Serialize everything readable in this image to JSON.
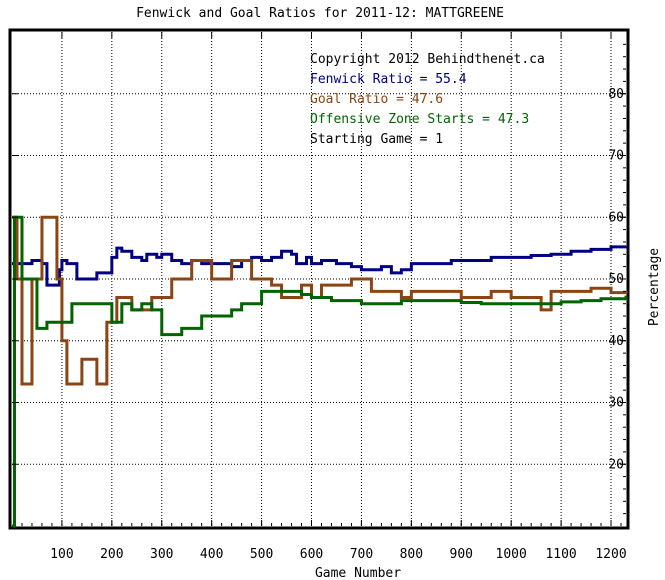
{
  "chart_data": {
    "type": "line",
    "title": "Fenwick and Goal Ratios for 2011-12: MATTGREENE",
    "xlabel": "Game Number",
    "ylabel": "Percentage",
    "xlim": [
      0,
      1230
    ],
    "ylim": [
      10,
      90
    ],
    "x_ticks": [
      100,
      200,
      300,
      400,
      500,
      600,
      700,
      800,
      900,
      1000,
      1100,
      1200
    ],
    "y_ticks": [
      20,
      30,
      40,
      50,
      60,
      70,
      80
    ],
    "grid": true,
    "legend": {
      "position": "top-right",
      "lines": [
        {
          "text": "Copyright 2012 Behindthenet.ca",
          "color": "#000000"
        },
        {
          "text": "Fenwick Ratio = 55.4",
          "color": "#000080"
        },
        {
          "text": "Goal Ratio = 47.6",
          "color": "#8B4513"
        },
        {
          "text": "Offensive Zone Starts = 47.3",
          "color": "#006400"
        },
        {
          "text": "Starting Game = 1",
          "color": "#000000"
        }
      ]
    },
    "series": [
      {
        "color": "#000080",
        "x": [
          0,
          10,
          40,
          60,
          70,
          80,
          95,
          100,
          110,
          130,
          150,
          170,
          200,
          210,
          220,
          240,
          260,
          270,
          290,
          300,
          320,
          340,
          360,
          380,
          400,
          420,
          440,
          460,
          480,
          500,
          520,
          540,
          560,
          570,
          590,
          600,
          620,
          650,
          680,
          700,
          720,
          740,
          760,
          780,
          800,
          840,
          880,
          920,
          960,
          1000,
          1040,
          1080,
          1120,
          1160,
          1200,
          1230
        ],
        "y": [
          52.5,
          52.5,
          53,
          52.5,
          49,
          49,
          51.5,
          53,
          52.5,
          50,
          50,
          51,
          53.5,
          55,
          54.5,
          53.5,
          53,
          54,
          53.5,
          54,
          53,
          52.5,
          53,
          52.5,
          52.5,
          52.5,
          52,
          53,
          53.5,
          53,
          53.5,
          54.5,
          54,
          52.5,
          53.5,
          52.5,
          53,
          52.5,
          52,
          51.5,
          51.5,
          52,
          51,
          51.5,
          52.5,
          52.5,
          53,
          53,
          53.5,
          53.5,
          53.8,
          54,
          54.5,
          54.8,
          55.2,
          55.4
        ]
      },
      {
        "color": "#8B4513",
        "x": [
          0,
          5,
          10,
          20,
          40,
          50,
          60,
          70,
          90,
          100,
          110,
          130,
          140,
          150,
          170,
          180,
          190,
          200,
          210,
          220,
          240,
          260,
          280,
          300,
          320,
          340,
          360,
          380,
          400,
          420,
          440,
          460,
          480,
          500,
          520,
          540,
          560,
          580,
          600,
          620,
          650,
          680,
          700,
          720,
          740,
          760,
          780,
          800,
          840,
          880,
          900,
          920,
          940,
          960,
          1000,
          1040,
          1060,
          1080,
          1100,
          1140,
          1160,
          1200,
          1230
        ],
        "y": [
          60,
          60,
          50,
          33,
          50,
          50,
          60,
          60,
          50,
          40,
          33,
          33,
          37,
          37,
          33,
          33,
          43,
          43,
          47,
          47,
          45,
          45,
          47,
          47,
          50,
          50,
          53,
          53,
          50,
          50,
          53,
          53,
          50,
          50,
          49,
          47,
          47,
          49,
          47,
          49,
          49,
          50,
          50,
          48,
          48,
          48,
          47,
          48,
          48,
          48,
          47,
          47,
          47,
          48,
          47,
          47,
          45,
          48,
          48,
          48,
          48.5,
          47.8,
          47.6
        ]
      },
      {
        "color": "#006400",
        "x": [
          0,
          5,
          10,
          20,
          40,
          50,
          60,
          70,
          80,
          100,
          120,
          130,
          140,
          150,
          160,
          180,
          200,
          220,
          240,
          260,
          280,
          300,
          320,
          340,
          360,
          380,
          400,
          420,
          440,
          460,
          480,
          500,
          520,
          540,
          560,
          580,
          600,
          640,
          680,
          700,
          740,
          780,
          820,
          860,
          900,
          940,
          980,
          1020,
          1060,
          1100,
          1140,
          1180,
          1230
        ],
        "y": [
          10,
          60,
          60,
          50,
          50,
          42,
          42,
          43,
          43,
          43,
          46,
          46,
          46,
          46,
          46,
          46,
          43,
          46,
          45,
          46,
          45,
          41,
          41,
          42,
          42,
          44,
          44,
          44,
          45,
          46,
          46,
          48,
          48,
          48,
          48,
          47.5,
          47,
          46.5,
          46.5,
          46,
          46,
          46.5,
          46.5,
          46.5,
          46.2,
          46,
          46,
          46,
          46,
          46.3,
          46.5,
          46.8,
          47.3
        ]
      }
    ]
  }
}
